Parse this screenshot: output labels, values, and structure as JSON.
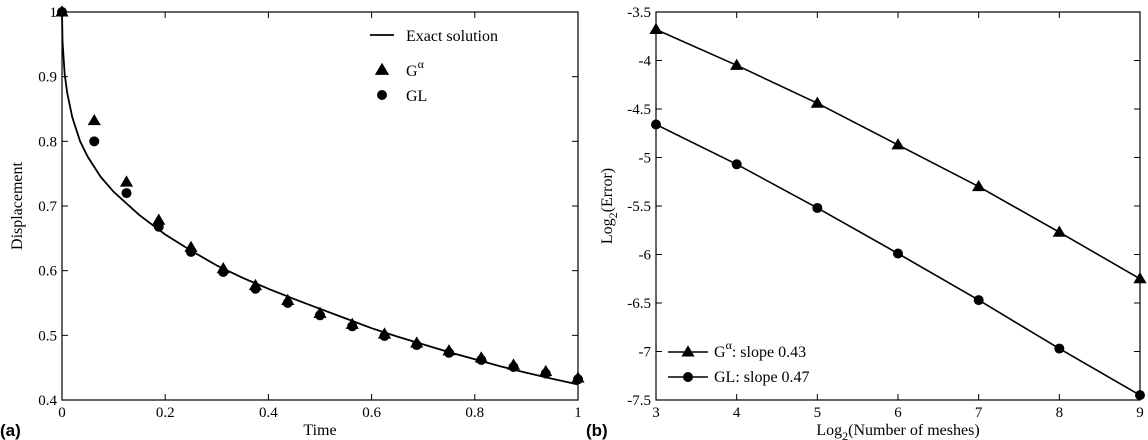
{
  "chart_data": [
    {
      "panel_label": "(a)",
      "type": "line+scatter",
      "xlabel": "Time",
      "ylabel": "Displacement",
      "xlim": [
        0,
        1
      ],
      "ylim": [
        0.4,
        1
      ],
      "xticks": [
        "0",
        "0.2",
        "0.4",
        "0.6",
        "0.8",
        "1"
      ],
      "yticks": [
        "0.4",
        "0.5",
        "0.6",
        "0.7",
        "0.8",
        "0.9",
        "1"
      ],
      "legend_position": "top-right",
      "exact": {
        "name": "Exact solution",
        "x": [
          0,
          0.001,
          0.005,
          0.01,
          0.02,
          0.035,
          0.05,
          0.075,
          0.1,
          0.15,
          0.2,
          0.25,
          0.3,
          0.35,
          0.4,
          0.45,
          0.5,
          0.55,
          0.6,
          0.65,
          0.7,
          0.75,
          0.8,
          0.85,
          0.9,
          0.95,
          1.0
        ],
        "y": [
          1.0,
          0.955,
          0.905,
          0.875,
          0.837,
          0.8,
          0.776,
          0.745,
          0.722,
          0.686,
          0.656,
          0.631,
          0.608,
          0.589,
          0.572,
          0.556,
          0.541,
          0.526,
          0.511,
          0.498,
          0.486,
          0.474,
          0.463,
          0.452,
          0.442,
          0.433,
          0.424
        ]
      },
      "series": [
        {
          "name": "G^α",
          "marker": "triangle",
          "x": [
            0,
            0.0625,
            0.125,
            0.1875,
            0.25,
            0.3125,
            0.375,
            0.4375,
            0.5,
            0.5625,
            0.625,
            0.6875,
            0.75,
            0.8125,
            0.875,
            0.9375,
            1.0
          ],
          "y": [
            1.0,
            0.832,
            0.737,
            0.678,
            0.636,
            0.603,
            0.577,
            0.554,
            0.534,
            0.517,
            0.502,
            0.488,
            0.476,
            0.465,
            0.454,
            0.444,
            0.434
          ]
        },
        {
          "name": "GL",
          "marker": "circle",
          "x": [
            0,
            0.0625,
            0.125,
            0.1875,
            0.25,
            0.3125,
            0.375,
            0.4375,
            0.5,
            0.5625,
            0.625,
            0.6875,
            0.75,
            0.8125,
            0.875,
            0.9375,
            1.0
          ],
          "y": [
            1.0,
            0.8,
            0.72,
            0.668,
            0.629,
            0.598,
            0.572,
            0.55,
            0.531,
            0.514,
            0.499,
            0.485,
            0.473,
            0.462,
            0.451,
            0.441,
            0.432
          ]
        }
      ]
    },
    {
      "panel_label": "(b)",
      "type": "line+scatter",
      "xlabel_main": "Log",
      "xlabel_sub": "2",
      "xlabel_rest": "(Number of meshes)",
      "ylabel_main": "Log",
      "ylabel_sub": "2",
      "ylabel_rest": "(Error)",
      "xlim": [
        3,
        9
      ],
      "ylim": [
        -7.5,
        -3.5
      ],
      "xticks": [
        "3",
        "4",
        "5",
        "6",
        "7",
        "8",
        "9"
      ],
      "yticks": [
        "-3.5",
        "-4",
        "-4.5",
        "-5",
        "-5.5",
        "-6",
        "-6.5",
        "-7",
        "-7.5"
      ],
      "legend_position": "bottom-left",
      "series": [
        {
          "name": "G^α: slope 0.43",
          "legend_main": "G",
          "legend_sup": "α",
          "legend_rest": ": slope  0.43",
          "marker": "triangle",
          "x": [
            3,
            4,
            5,
            6,
            7,
            8,
            9
          ],
          "y": [
            -3.68,
            -4.05,
            -4.44,
            -4.87,
            -5.3,
            -5.77,
            -6.25
          ]
        },
        {
          "name": "GL: slope 0.47",
          "legend_main": "GL",
          "legend_rest": ": slope  0.47",
          "marker": "circle",
          "x": [
            3,
            4,
            5,
            6,
            7,
            8,
            9
          ],
          "y": [
            -4.66,
            -5.07,
            -5.52,
            -5.99,
            -6.47,
            -6.97,
            -7.45
          ]
        }
      ]
    }
  ]
}
